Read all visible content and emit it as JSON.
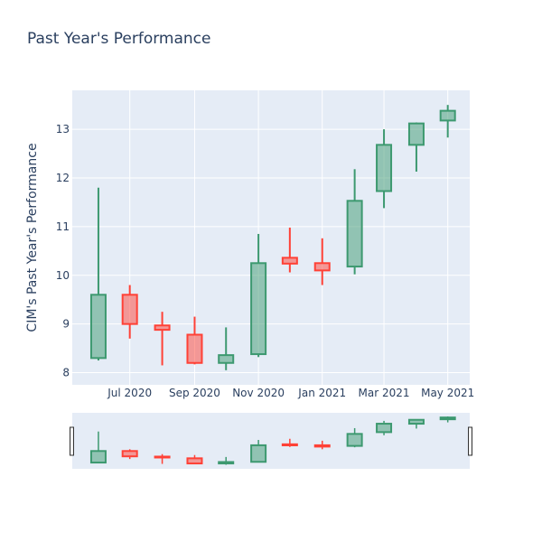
{
  "chart_data": {
    "type": "candlestick",
    "title": "Past Year's Performance",
    "xlabel": "",
    "ylabel": "CIM's Past Year's Performance",
    "ylim": [
      7.75,
      13.8
    ],
    "xlim": [
      "2020-05-07",
      "2021-05-22"
    ],
    "x_ticks": [
      {
        "date": "2020-07-01",
        "label": "Jul 2020"
      },
      {
        "date": "2020-09-01",
        "label": "Sep 2020"
      },
      {
        "date": "2020-11-01",
        "label": "Nov 2020"
      },
      {
        "date": "2021-01-01",
        "label": "Jan 2021"
      },
      {
        "date": "2021-03-01",
        "label": "Mar 2021"
      },
      {
        "date": "2021-05-01",
        "label": "May 2021"
      }
    ],
    "y_ticks": [
      8,
      9,
      10,
      11,
      12,
      13
    ],
    "increasing_color": "#3d9970",
    "decreasing_color": "#ff4136",
    "candles": [
      {
        "date": "2020-06-01",
        "open": 8.3,
        "high": 11.8,
        "low": 8.25,
        "close": 9.6
      },
      {
        "date": "2020-07-01",
        "open": 9.6,
        "high": 9.8,
        "low": 8.7,
        "close": 9.0
      },
      {
        "date": "2020-08-01",
        "open": 8.97,
        "high": 9.25,
        "low": 8.15,
        "close": 8.88
      },
      {
        "date": "2020-09-01",
        "open": 8.78,
        "high": 9.15,
        "low": 8.17,
        "close": 8.2
      },
      {
        "date": "2020-10-01",
        "open": 8.2,
        "high": 8.93,
        "low": 8.05,
        "close": 8.36
      },
      {
        "date": "2020-11-01",
        "open": 8.38,
        "high": 10.85,
        "low": 8.32,
        "close": 10.25
      },
      {
        "date": "2020-12-01",
        "open": 10.36,
        "high": 10.98,
        "low": 10.06,
        "close": 10.24
      },
      {
        "date": "2021-01-01",
        "open": 10.25,
        "high": 10.76,
        "low": 9.8,
        "close": 10.1
      },
      {
        "date": "2021-02-01",
        "open": 10.18,
        "high": 12.18,
        "low": 10.02,
        "close": 11.53
      },
      {
        "date": "2021-03-01",
        "open": 11.73,
        "high": 13.0,
        "low": 11.38,
        "close": 12.68
      },
      {
        "date": "2021-04-01",
        "open": 12.68,
        "high": 13.14,
        "low": 12.13,
        "close": 13.12
      },
      {
        "date": "2021-05-01",
        "open": 13.18,
        "high": 13.5,
        "low": 12.83,
        "close": 13.38
      }
    ]
  }
}
